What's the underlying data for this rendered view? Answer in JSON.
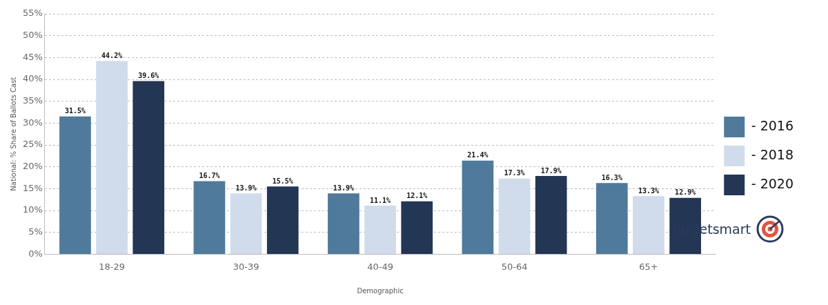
{
  "chart_data": {
    "type": "bar",
    "x_label": "Demographic",
    "y_label": "National: % Share of Ballots Cast",
    "categories": [
      "18-29",
      "30-39",
      "40-49",
      "50-64",
      "65+"
    ],
    "series": [
      {
        "name": "- 2016",
        "color": "#4f7a9b",
        "values": [
          31.5,
          16.7,
          13.9,
          21.4,
          16.3
        ],
        "value_labels": [
          "31.5%",
          "16.7%",
          "13.9%",
          "21.4%",
          "16.3%"
        ]
      },
      {
        "name": "- 2018",
        "color": "#d0dcec",
        "values": [
          44.2,
          13.9,
          11.1,
          17.3,
          13.3
        ],
        "value_labels": [
          "44.2%",
          "13.9%",
          "11.1%",
          "17.3%",
          "13.3%"
        ]
      },
      {
        "name": "- 2020",
        "color": "#233654",
        "values": [
          39.6,
          15.5,
          12.1,
          17.9,
          12.9
        ],
        "value_labels": [
          "39.6%",
          "15.5%",
          "12.1%",
          "17.9%",
          "12.9%"
        ]
      }
    ],
    "ylim": [
      0,
      55
    ],
    "yticks": [
      {
        "value": 0,
        "label": "0%"
      },
      {
        "value": 5,
        "label": "5%"
      },
      {
        "value": 10,
        "label": "10%"
      },
      {
        "value": 15,
        "label": "15%"
      },
      {
        "value": 20,
        "label": "20%"
      },
      {
        "value": 25,
        "label": "25%"
      },
      {
        "value": 30,
        "label": "30%"
      },
      {
        "value": 35,
        "label": "35%"
      },
      {
        "value": 40,
        "label": "40%"
      },
      {
        "value": 45,
        "label": "45%"
      },
      {
        "value": 50,
        "label": "50%"
      },
      {
        "value": 55,
        "label": "55%"
      }
    ],
    "grid": true,
    "legend": "right",
    "data_labels": true,
    "annotations": [
      "targetsmart"
    ]
  }
}
